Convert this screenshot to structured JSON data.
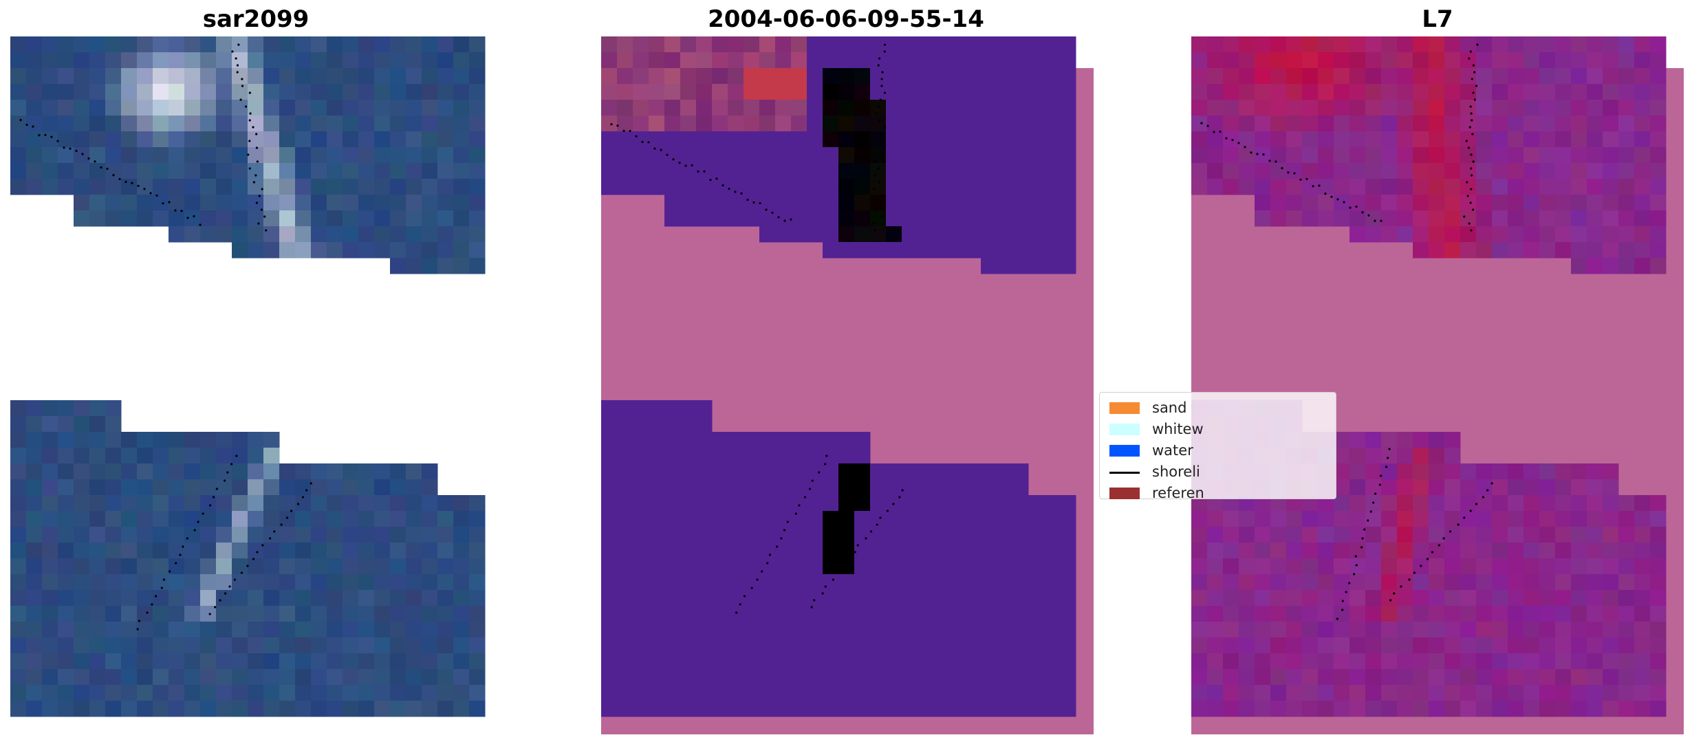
{
  "panels": [
    {
      "title": "sar2099"
    },
    {
      "title": "2004-06-06-09-55-14"
    },
    {
      "title": "L7"
    }
  ],
  "legend": {
    "items": [
      {
        "label": "sand",
        "color": "#f58a33",
        "kind": "patch"
      },
      {
        "label": "whitew",
        "color": "#ccffff",
        "kind": "patch"
      },
      {
        "label": "water",
        "color": "#0055ff",
        "kind": "patch"
      },
      {
        "label": "shoreli",
        "color": "#000000",
        "kind": "line"
      },
      {
        "label": "referen",
        "color": "#9a3030",
        "kind": "patch"
      }
    ]
  },
  "colors": {
    "sar_water": "#2a4a7d",
    "sar_bright": "#f2f5fa",
    "class_water": "#522293",
    "class_pink": "#bc6698",
    "class_reference": "#c43a4a",
    "l7_red": "#c8103a",
    "l7_purple": "#7d2b9a"
  }
}
